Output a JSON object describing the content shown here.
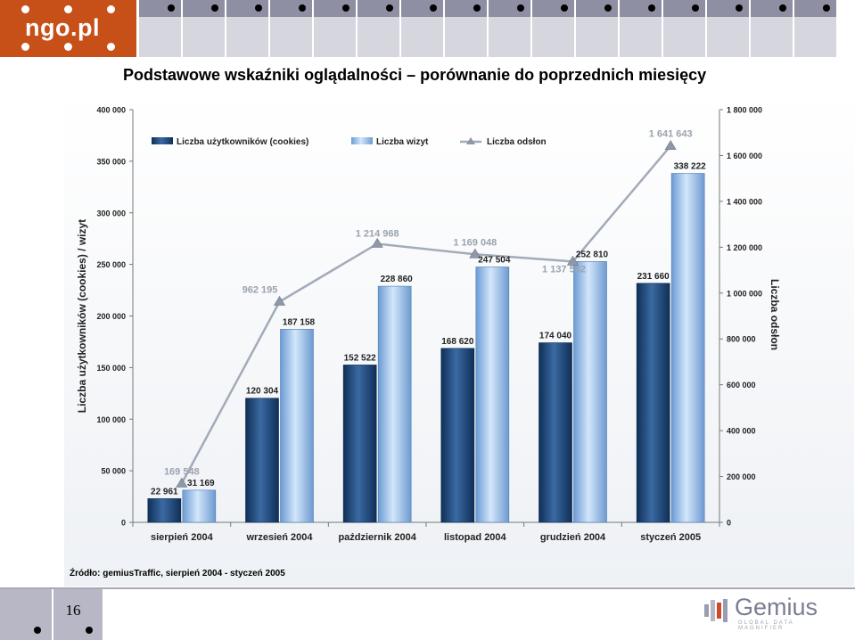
{
  "header": {
    "logo_text": "ngo.pl",
    "logo_color": "#c75019"
  },
  "slide_title": "Podstawowe wskaźniki oglądalności – porównanie do poprzednich miesięcy",
  "chart_data": {
    "type": "bar",
    "categories": [
      "sierpień 2004",
      "wrzesień 2004",
      "październik 2004",
      "listopad 2004",
      "grudzień 2004",
      "styczeń 2005"
    ],
    "series": [
      {
        "name": "Liczba użytkowników (cookies)",
        "type": "bar",
        "axis": "left",
        "color": "#1f4f82",
        "values": [
          22961,
          120304,
          152522,
          168620,
          174040,
          231660
        ],
        "labels": [
          "22 961",
          "120 304",
          "152 522",
          "168 620",
          "174 040",
          "231 660"
        ]
      },
      {
        "name": "Liczba wizyt",
        "type": "bar",
        "axis": "left",
        "color": "#8fb8e6",
        "values": [
          31169,
          187158,
          228860,
          247504,
          252810,
          338222
        ],
        "labels": [
          "31 169",
          "187 158",
          "228 860",
          "247 504",
          "252 810",
          "338 222"
        ]
      },
      {
        "name": "Liczba odsłon",
        "type": "line",
        "axis": "right",
        "color": "#a2abb8",
        "values": [
          169548,
          962195,
          1214968,
          1169048,
          1137532,
          1641643
        ],
        "labels": [
          "169 548",
          "962 195",
          "1 214 968",
          "1 169 048",
          "1 137 532",
          "1 641 643"
        ]
      }
    ],
    "ylabel": "Liczba użytkowników (cookies) / wizyt",
    "y2label": "Liczba odsłon",
    "ylim": [
      0,
      400000
    ],
    "y2lim": [
      0,
      1800000
    ],
    "yticks": [
      {
        "v": 0,
        "label": "0"
      },
      {
        "v": 50000,
        "label": "50 000"
      },
      {
        "v": 100000,
        "label": "100 000"
      },
      {
        "v": 150000,
        "label": "150 000"
      },
      {
        "v": 200000,
        "label": "200 000"
      },
      {
        "v": 250000,
        "label": "250 000"
      },
      {
        "v": 300000,
        "label": "300 000"
      },
      {
        "v": 350000,
        "label": "350 000"
      },
      {
        "v": 400000,
        "label": "400 000"
      }
    ],
    "y2ticks": [
      {
        "v": 0,
        "label": "0"
      },
      {
        "v": 200000,
        "label": "200 000"
      },
      {
        "v": 400000,
        "label": "400 000"
      },
      {
        "v": 600000,
        "label": "600 000"
      },
      {
        "v": 800000,
        "label": "800 000"
      },
      {
        "v": 1000000,
        "label": "1 000 000"
      },
      {
        "v": 1200000,
        "label": "1 200 000"
      },
      {
        "v": 1400000,
        "label": "1 400 000"
      },
      {
        "v": 1600000,
        "label": "1 600 000"
      },
      {
        "v": 1800000,
        "label": "1 800 000"
      }
    ],
    "legend_position": "top-left",
    "grid": false
  },
  "source_text": "Źródło: gemiusTraffic, sierpień 2004 - styczeń 2005",
  "page_number": "16",
  "footer_brand": {
    "name": "Gemius",
    "tagline": "GLOBAL DATA MAGNIFIER"
  }
}
